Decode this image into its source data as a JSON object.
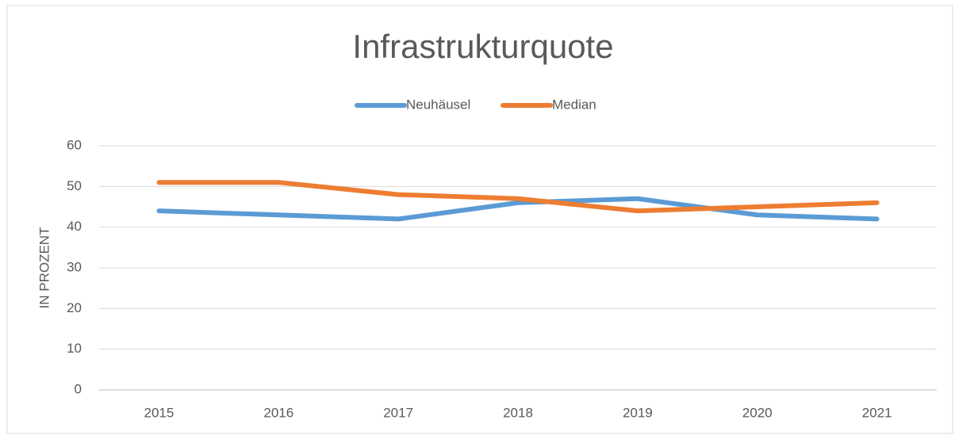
{
  "chart_data": {
    "type": "line",
    "title": "Infrastrukturquote",
    "y_label": "IN PROZENT",
    "categories": [
      "2015",
      "2016",
      "2017",
      "2018",
      "2019",
      "2020",
      "2021"
    ],
    "series": [
      {
        "name": "Neuhäusel",
        "color": "#5b9bd5",
        "values": [
          44,
          43,
          42,
          46,
          47,
          43,
          42
        ]
      },
      {
        "name": "Median",
        "color": "#ed7d31",
        "values": [
          51,
          51,
          48,
          47,
          44,
          45,
          46
        ]
      }
    ],
    "ylim": [
      0,
      60
    ],
    "yticks": [
      0,
      10,
      20,
      30,
      40,
      50,
      60
    ],
    "grid": true,
    "legend": "top"
  }
}
